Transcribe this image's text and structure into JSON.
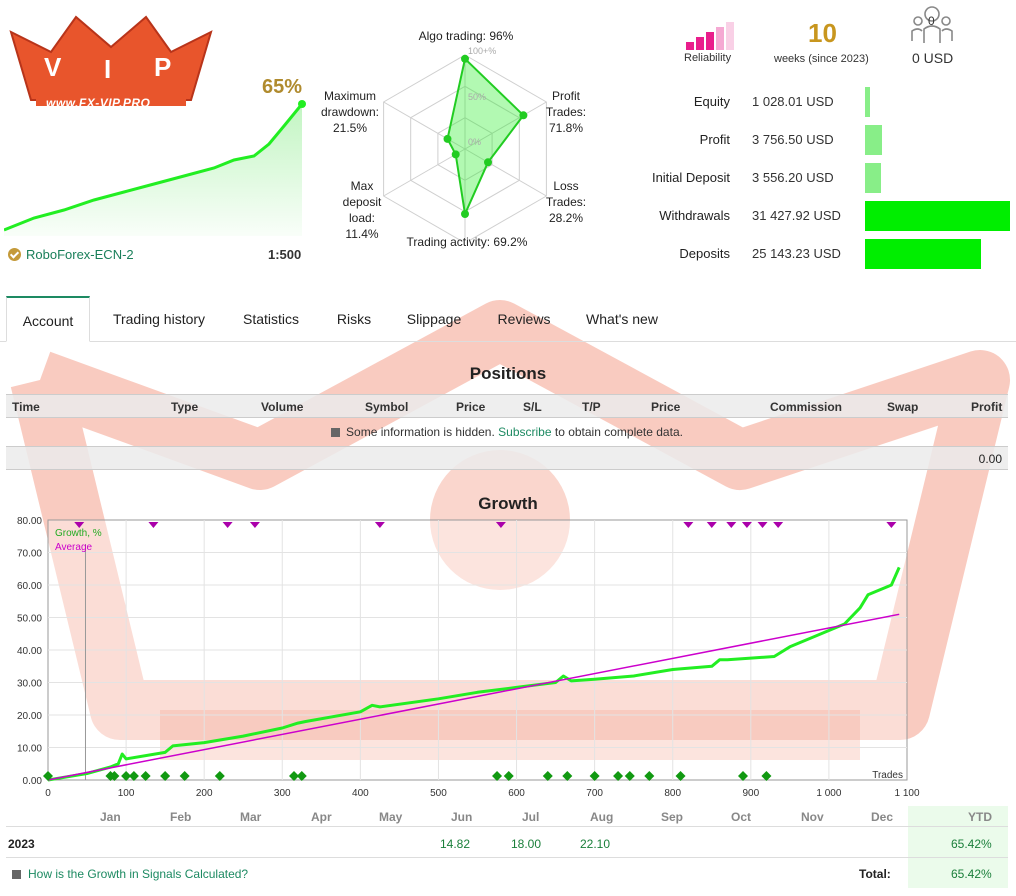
{
  "header": {
    "logo_text": "www.FX-VIP.PRO",
    "growth_percent": "65%",
    "broker": "RoboForex-ECN-2",
    "leverage": "1:500"
  },
  "radar": {
    "algo_trading": "Algo trading: 96%",
    "profit_trades": "Profit\nTrades:\n71.8%",
    "loss_trades": "Loss\nTrades:\n28.2%",
    "trading_activity": "Trading activity: 69.2%",
    "max_deposit_load": "Max\ndeposit\nload:\n11.4%",
    "max_drawdown": "Maximum\ndrawdown:\n21.5%",
    "grid_labels": [
      "100+%",
      "50%",
      "0%"
    ],
    "values": {
      "algo": 0.96,
      "profit": 0.718,
      "loss": 0.282,
      "activity": 0.692,
      "deposit_load": 0.114,
      "drawdown": 0.215
    }
  },
  "summary": {
    "reliability_label": "Reliability",
    "weeks_value": "10",
    "weeks_label": "weeks (since 2023)",
    "subscribers_count": "0",
    "subscribers_value": "0 USD",
    "stats": [
      {
        "label": "Equity",
        "value": "1 028.01 USD",
        "fraction": 0.033
      },
      {
        "label": "Profit",
        "value": "3 756.50 USD",
        "fraction": 0.12
      },
      {
        "label": "Initial Deposit",
        "value": "3 556.20 USD",
        "fraction": 0.113
      },
      {
        "label": "Withdrawals",
        "value": "31 427.92 USD",
        "fraction": 1.0
      },
      {
        "label": "Deposits",
        "value": "25 143.23 USD",
        "fraction": 0.8
      }
    ]
  },
  "tabs": [
    "Account",
    "Trading history",
    "Statistics",
    "Risks",
    "Slippage",
    "Reviews",
    "What's new"
  ],
  "positions": {
    "title": "Positions",
    "columns": [
      "Time",
      "Type",
      "Volume",
      "Symbol",
      "Price",
      "S/L",
      "T/P",
      "Price",
      "Commission",
      "Swap",
      "Profit"
    ],
    "hidden_text_before": "Some information is hidden.",
    "hidden_link": "Subscribe",
    "hidden_text_after": "to obtain complete data.",
    "total_profit": "0.00"
  },
  "growth": {
    "title": "Growth",
    "legend_growth": "Growth, %",
    "legend_average": "Average",
    "trades_label": "Trades",
    "months": [
      "Jan",
      "Feb",
      "Mar",
      "Apr",
      "May",
      "Jun",
      "Jul",
      "Aug",
      "Sep",
      "Oct",
      "Nov",
      "Dec"
    ],
    "ytd_label": "YTD",
    "year": "2023",
    "monthly_values": {
      "Jun": "14.82",
      "Jul": "18.00",
      "Aug": "22.10"
    },
    "ytd_value": "65.42%",
    "help_link": "How is the Growth in Signals Calculated?",
    "total_label": "Total:",
    "total_value": "65.42%"
  },
  "chart_data": {
    "type": "line",
    "title": "Growth",
    "xlabel": "Trades",
    "ylabel": "",
    "xlim": [
      0,
      1100
    ],
    "ylim": [
      0,
      80
    ],
    "x_ticks": [
      "0",
      "100",
      "200",
      "300",
      "400",
      "500",
      "600",
      "700",
      "800",
      "900",
      "1 000",
      "1 100"
    ],
    "y_ticks": [
      "0.00",
      "10.00",
      "20.00",
      "30.00",
      "40.00",
      "50.00",
      "60.00",
      "70.00",
      "80.00"
    ],
    "series": [
      {
        "name": "Growth, %",
        "color": "#22ee22",
        "x": [
          0,
          50,
          80,
          90,
          95,
          100,
          150,
          160,
          200,
          250,
          300,
          320,
          330,
          400,
          415,
          425,
          500,
          550,
          600,
          650,
          660,
          670,
          700,
          750,
          800,
          850,
          860,
          870,
          900,
          930,
          940,
          950,
          990,
          1020,
          1040,
          1050,
          1060,
          1080,
          1090
        ],
        "y": [
          0,
          2,
          4,
          5,
          8,
          6.5,
          8.5,
          10.5,
          11.5,
          13.5,
          16,
          17.5,
          18,
          21,
          23,
          22.5,
          25,
          27,
          28.5,
          30,
          32,
          30.5,
          31,
          32,
          34,
          35,
          37,
          37,
          37.5,
          38,
          39.5,
          41,
          45,
          48,
          53,
          57,
          58,
          60,
          65.4
        ]
      },
      {
        "name": "Average",
        "color": "#cc00cc",
        "x": [
          0,
          1090
        ],
        "y": [
          0,
          51
        ]
      }
    ],
    "top_markers_x": [
      40,
      135,
      230,
      265,
      425,
      580,
      820,
      850,
      875,
      895,
      915,
      935,
      1080
    ],
    "bottom_markers_x": [
      0,
      80,
      85,
      100,
      110,
      125,
      150,
      175,
      220,
      315,
      325,
      575,
      590,
      640,
      665,
      700,
      730,
      745,
      770,
      810,
      890,
      920
    ]
  }
}
